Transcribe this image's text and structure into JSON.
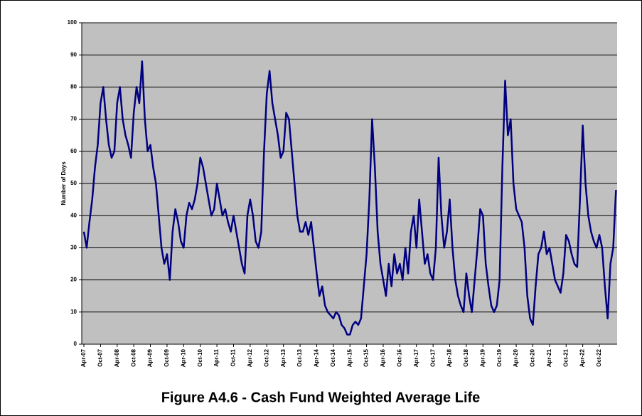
{
  "chart_data": {
    "type": "line",
    "title": "Figure A4.6 - Cash Fund Weighted Average Life",
    "y_label": "Number of Days",
    "ylim": [
      0,
      100
    ],
    "yticks": [
      0,
      10,
      20,
      30,
      40,
      50,
      60,
      70,
      80,
      90,
      100
    ],
    "grid": true,
    "categories": [
      "Apr-07",
      null,
      null,
      null,
      null,
      null,
      "Oct-07",
      null,
      null,
      null,
      null,
      null,
      "Apr-08",
      null,
      null,
      null,
      null,
      null,
      "Oct-08",
      null,
      null,
      null,
      null,
      null,
      "Apr-09",
      null,
      null,
      null,
      null,
      null,
      "Oct-09",
      null,
      null,
      null,
      null,
      null,
      "Apr-10",
      null,
      null,
      null,
      null,
      null,
      "Oct-10",
      null,
      null,
      null,
      null,
      null,
      "Apr-11",
      null,
      null,
      null,
      null,
      null,
      "Oct-11",
      null,
      null,
      null,
      null,
      null,
      "Apr-12",
      null,
      null,
      null,
      null,
      null,
      "Oct-12",
      null,
      null,
      null,
      null,
      null,
      "Apr-13",
      null,
      null,
      null,
      null,
      null,
      "Oct-13",
      null,
      null,
      null,
      null,
      null,
      "Apr-14",
      null,
      null,
      null,
      null,
      null,
      "Oct-14",
      null,
      null,
      null,
      null,
      null,
      "Apr-15",
      null,
      null,
      null,
      null,
      null,
      "Oct-15",
      null,
      null,
      null,
      null,
      null,
      "Apr-16",
      null,
      null,
      null,
      null,
      null,
      "Oct-16",
      null,
      null,
      null,
      null,
      null,
      "Apr-17",
      null,
      null,
      null,
      null,
      null,
      "Oct-17",
      null,
      null,
      null,
      null,
      null,
      "Apr-18",
      null,
      null,
      null,
      null,
      null,
      "Oct-18",
      null,
      null,
      null,
      null,
      null,
      "Apr-19",
      null,
      null,
      null,
      null,
      null,
      "Oct-19",
      null,
      null,
      null,
      null,
      null,
      "Apr-20",
      null,
      null,
      null,
      null,
      null,
      "Oct-20",
      null,
      null,
      null,
      null,
      null,
      "Apr-21",
      null,
      null,
      null,
      null,
      null,
      "Oct-21",
      null,
      null,
      null,
      null,
      null,
      "Apr-22",
      null,
      null,
      null,
      null,
      null,
      "Oct-22",
      null,
      null,
      null,
      null,
      null,
      null
    ],
    "series": [
      {
        "name": "Weighted Average Life",
        "color": "#000080",
        "values": [
          35,
          30,
          38,
          45,
          55,
          62,
          75,
          80,
          70,
          62,
          58,
          60,
          75,
          80,
          70,
          65,
          62,
          58,
          72,
          80,
          75,
          88,
          70,
          60,
          62,
          55,
          50,
          40,
          30,
          25,
          28,
          20,
          35,
          42,
          38,
          32,
          30,
          40,
          44,
          42,
          45,
          50,
          58,
          55,
          50,
          45,
          40,
          42,
          50,
          45,
          40,
          42,
          38,
          35,
          40,
          35,
          30,
          25,
          22,
          40,
          45,
          40,
          32,
          30,
          35,
          60,
          78,
          85,
          75,
          70,
          65,
          58,
          60,
          72,
          70,
          60,
          50,
          40,
          35,
          35,
          38,
          34,
          38,
          30,
          22,
          15,
          18,
          12,
          10,
          9,
          8,
          10,
          9,
          6,
          5,
          3,
          3,
          6,
          7,
          6,
          8,
          18,
          28,
          45,
          70,
          55,
          35,
          25,
          20,
          15,
          25,
          18,
          28,
          22,
          25,
          20,
          30,
          22,
          35,
          40,
          30,
          45,
          35,
          25,
          28,
          22,
          20,
          30,
          58,
          40,
          30,
          35,
          45,
          30,
          20,
          15,
          12,
          10,
          22,
          15,
          10,
          20,
          30,
          42,
          40,
          25,
          18,
          12,
          10,
          12,
          20,
          55,
          82,
          65,
          70,
          50,
          42,
          40,
          38,
          30,
          15,
          8,
          6,
          18,
          28,
          30,
          35,
          28,
          30,
          25,
          20,
          18,
          16,
          22,
          34,
          32,
          28,
          25,
          24,
          45,
          68,
          50,
          40,
          35,
          32,
          30,
          34,
          30,
          18,
          8,
          25,
          30,
          48
        ]
      }
    ]
  }
}
